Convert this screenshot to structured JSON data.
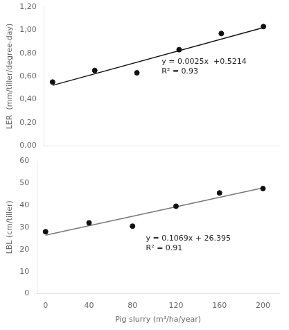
{
  "chart_data": [
    {
      "type": "scatter",
      "y_label": "LER  (mm/tiller/degree-day)",
      "annotations": [
        "y = 0.0025x  +0.5214",
        "R² = 0.93"
      ],
      "series": [
        {
          "type": "scatter",
          "marker": "o",
          "color": "#111111",
          "x": [
            0,
            40,
            80,
            120,
            160,
            200
          ],
          "values": [
            0.55,
            0.65,
            0.63,
            0.83,
            0.97,
            1.03
          ]
        },
        {
          "type": "line",
          "color": "#111111",
          "x": [
            0,
            200
          ],
          "values": [
            0.5214,
            1.0214
          ]
        }
      ],
      "xlim": [
        -8,
        215
      ],
      "xticks": [
        0,
        40,
        80,
        120,
        160,
        200
      ],
      "ylim": [
        0.0,
        1.2
      ],
      "yticks": [
        {
          "value": 0.0,
          "label": "0,00"
        },
        {
          "value": 0.2,
          "label": "0,20"
        },
        {
          "value": 0.4,
          "label": "0,40"
        },
        {
          "value": 0.6,
          "label": "0,60"
        },
        {
          "value": 0.8,
          "label": "0,80"
        },
        {
          "value": 1.0,
          "label": "1,00"
        },
        {
          "value": 1.2,
          "label": "1,20"
        }
      ],
      "grid": false,
      "tick_labels": "y"
    },
    {
      "type": "scatter",
      "x_label": "Pig slurry (m³/ha/year)",
      "y_label": "LBL (cm/tiller)",
      "annotations": [
        "y = 0.1069x + 26.395",
        "R² = 0.91"
      ],
      "series": [
        {
          "type": "scatter",
          "marker": "o",
          "color": "#111111",
          "x": [
            0,
            40,
            80,
            120,
            160,
            200
          ],
          "values": [
            28,
            32,
            30.5,
            39.5,
            45.5,
            47.5
          ]
        },
        {
          "type": "line",
          "color": "#777777",
          "x": [
            0,
            200
          ],
          "values": [
            26.395,
            47.775
          ]
        }
      ],
      "xlim": [
        -8,
        215
      ],
      "xticks": [
        0,
        40,
        80,
        120,
        160,
        200
      ],
      "ylim": [
        0,
        60
      ],
      "yticks": [
        0,
        10,
        20,
        30,
        40,
        50,
        60
      ],
      "grid": false
    }
  ]
}
